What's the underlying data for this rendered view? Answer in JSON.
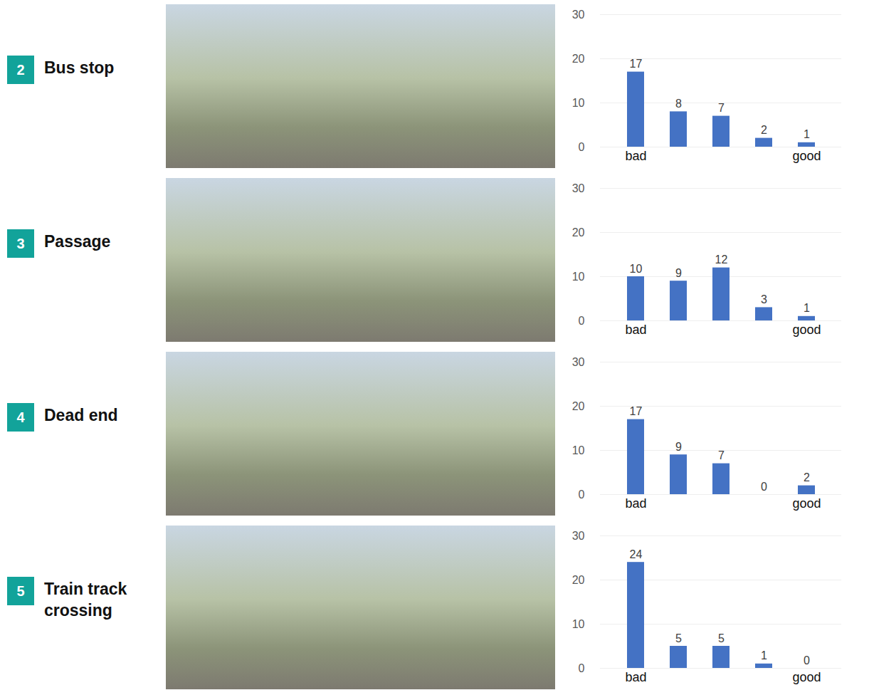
{
  "chart_data": [
    {
      "type": "bar",
      "panel": "2",
      "title": "Bus stop",
      "categories": [
        "bad",
        null,
        null,
        null,
        "good"
      ],
      "values": [
        17,
        8,
        7,
        2,
        1
      ],
      "color": "#4472c4",
      "ylim": [
        0,
        30
      ],
      "yticks": [
        0,
        10,
        20,
        30
      ],
      "grid": true,
      "data_labels": true
    },
    {
      "type": "bar",
      "panel": "3",
      "title": "Passage",
      "categories": [
        "bad",
        null,
        null,
        null,
        "good"
      ],
      "values": [
        10,
        9,
        12,
        3,
        1
      ],
      "color": "#4472c4",
      "ylim": [
        0,
        30
      ],
      "yticks": [
        0,
        10,
        20,
        30
      ],
      "grid": true,
      "data_labels": true
    },
    {
      "type": "bar",
      "panel": "4",
      "title": "Dead end",
      "categories": [
        "bad",
        null,
        null,
        null,
        "good"
      ],
      "values": [
        17,
        9,
        7,
        0,
        2
      ],
      "color": "#4472c4",
      "ylim": [
        0,
        30
      ],
      "yticks": [
        0,
        10,
        20,
        30
      ],
      "grid": true,
      "data_labels": true
    },
    {
      "type": "bar",
      "panel": "5",
      "title": "Train track crossing",
      "categories": [
        "bad",
        null,
        null,
        null,
        "good"
      ],
      "values": [
        24,
        5,
        5,
        1,
        0
      ],
      "color": "#4472c4",
      "ylim": [
        0,
        30
      ],
      "yticks": [
        0,
        10,
        20,
        30
      ],
      "grid": true,
      "data_labels": true
    }
  ]
}
